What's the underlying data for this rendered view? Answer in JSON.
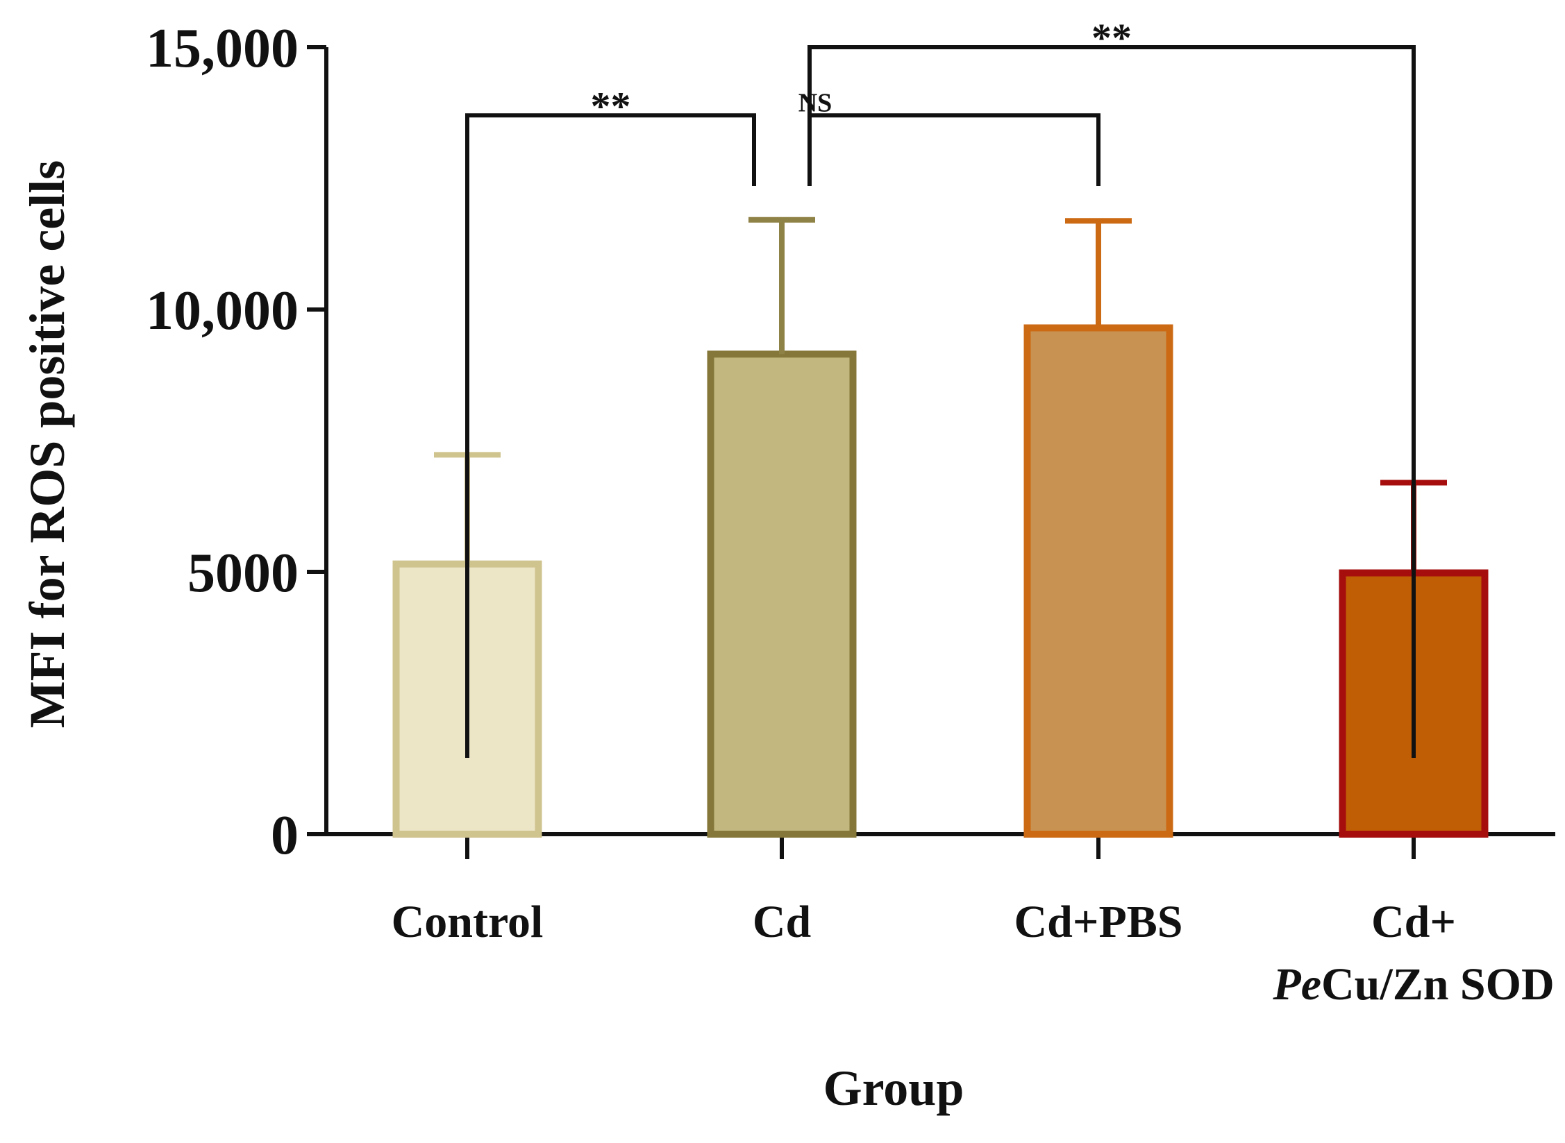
{
  "chart_data": {
    "type": "bar",
    "xlabel": "Group",
    "ylabel": "MFI for ROS positive cells",
    "ylim": [
      0,
      15000
    ],
    "yticks": [
      0,
      5000,
      10000,
      15000
    ],
    "ytick_labels": [
      "0",
      "5000",
      "10,000",
      "15,000"
    ],
    "categories": [
      {
        "line1": "Control",
        "line2": "",
        "line2_italic": "",
        "line2_rest": ""
      },
      {
        "line1": "Cd",
        "line2": "",
        "line2_italic": "",
        "line2_rest": ""
      },
      {
        "line1": "Cd+PBS",
        "line2": "",
        "line2_italic": "",
        "line2_rest": ""
      },
      {
        "line1": "Cd+",
        "line2": "PeCu/Zn SOD",
        "line2_italic": "Pe",
        "line2_rest": "Cu/Zn SOD"
      }
    ],
    "values": [
      5150,
      9150,
      9650,
      4980
    ],
    "error_upper": [
      2080,
      2560,
      2040,
      1720
    ],
    "colors": {
      "fill": [
        "#ece5c6",
        "#c2b77e",
        "#c89352",
        "#c05e05"
      ],
      "stroke": [
        "#cfc38e",
        "#847739",
        "#cc6a14",
        "#a60d0d"
      ],
      "error": [
        "#cfc38e",
        "#8f8246",
        "#cc6a14",
        "#a60d0d"
      ],
      "axis": "#111111"
    },
    "significance": [
      {
        "from": 0,
        "to": 1,
        "label": "**",
        "y": 13700
      },
      {
        "from": 1,
        "to": 2,
        "label": "NS",
        "y": 13700
      },
      {
        "from": 1,
        "to": 3,
        "label": "**",
        "y": 15000
      }
    ],
    "grid": false,
    "legend": "none"
  }
}
